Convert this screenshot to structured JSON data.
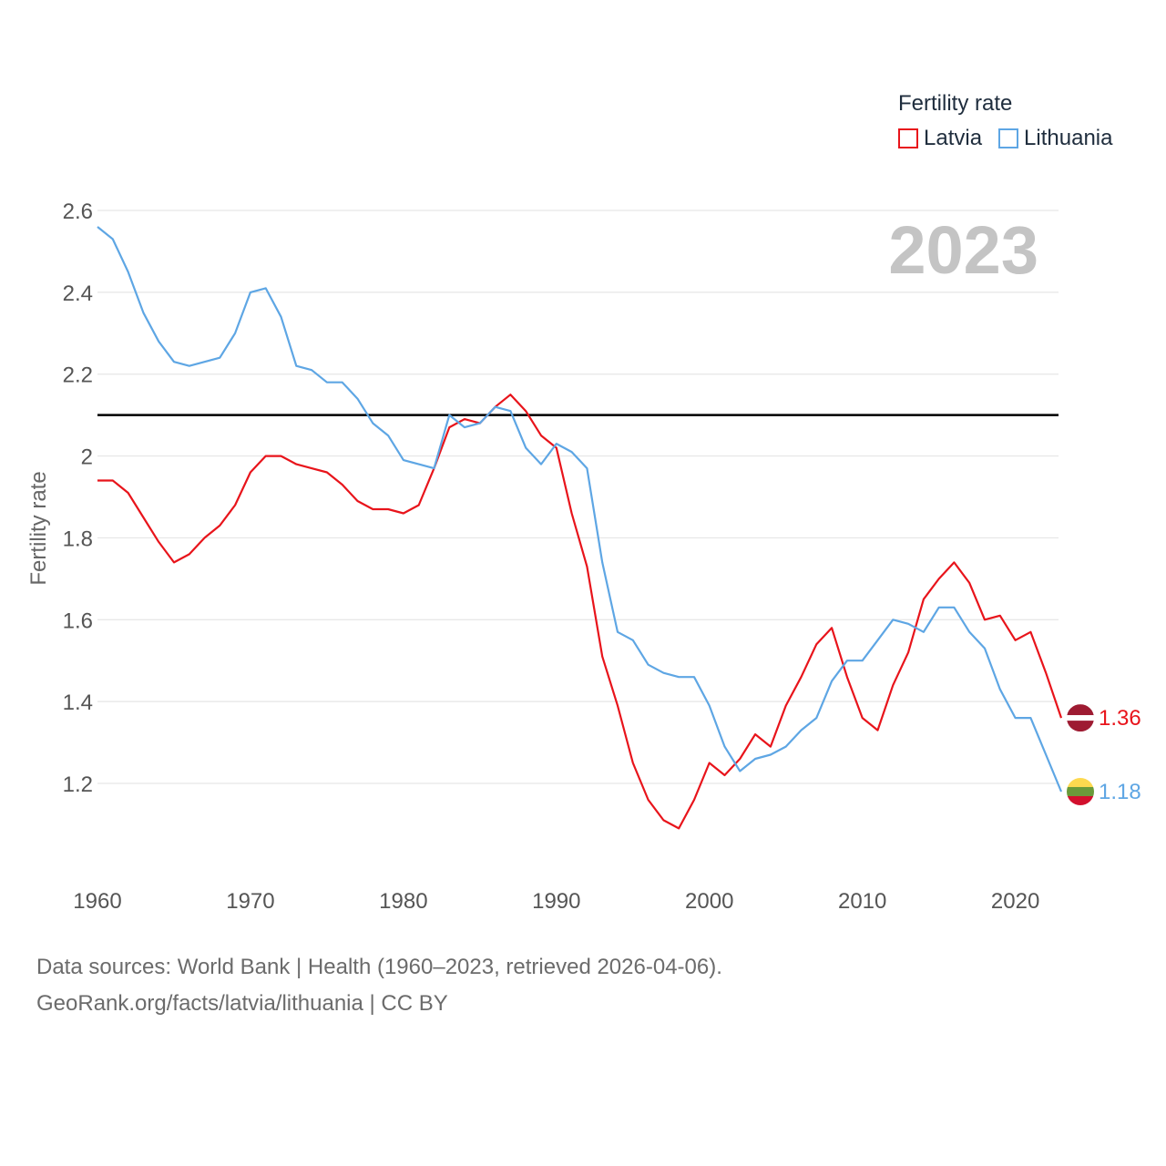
{
  "legend": {
    "title": "Fertility rate",
    "items": [
      {
        "label": "Latvia",
        "color": "#e8141b"
      },
      {
        "label": "Lithuania",
        "color": "#5ea6e4"
      }
    ]
  },
  "footer": {
    "line1": "Data sources: World Bank | Health (1960–2023, retrieved 2026-04-06).",
    "line2": "GeoRank.org/facts/latvia/lithuania | CC BY"
  },
  "chart_data": {
    "type": "line",
    "title": "Fertility rate",
    "year_label": "2023",
    "ylabel": "Fertility rate",
    "xlabel": "",
    "xlim": [
      1960,
      2023
    ],
    "ylim": [
      1.0,
      2.6
    ],
    "xticks": [
      1960,
      1970,
      1980,
      1990,
      2000,
      2010,
      2020
    ],
    "yticks": [
      1.2,
      1.4,
      1.6,
      1.8,
      2.0,
      2.2,
      2.4,
      2.6
    ],
    "ytick_labels": [
      "1.2",
      "1.4",
      "1.6",
      "1.8",
      "2",
      "2.2",
      "2.4",
      "2.6"
    ],
    "reference_line": 2.1,
    "grid": true,
    "x": [
      1960,
      1961,
      1962,
      1963,
      1964,
      1965,
      1966,
      1967,
      1968,
      1969,
      1970,
      1971,
      1972,
      1973,
      1974,
      1975,
      1976,
      1977,
      1978,
      1979,
      1980,
      1981,
      1982,
      1983,
      1984,
      1985,
      1986,
      1987,
      1988,
      1989,
      1990,
      1991,
      1992,
      1993,
      1994,
      1995,
      1996,
      1997,
      1998,
      1999,
      2000,
      2001,
      2002,
      2003,
      2004,
      2005,
      2006,
      2007,
      2008,
      2009,
      2010,
      2011,
      2012,
      2013,
      2014,
      2015,
      2016,
      2017,
      2018,
      2019,
      2020,
      2021,
      2022,
      2023
    ],
    "series": [
      {
        "name": "Latvia",
        "color": "#e8141b",
        "end_label": "1.36",
        "values": [
          1.94,
          1.94,
          1.91,
          1.85,
          1.79,
          1.74,
          1.76,
          1.8,
          1.83,
          1.88,
          1.96,
          2.0,
          2.0,
          1.98,
          1.97,
          1.96,
          1.93,
          1.89,
          1.87,
          1.87,
          1.86,
          1.88,
          1.97,
          2.07,
          2.09,
          2.08,
          2.12,
          2.15,
          2.11,
          2.05,
          2.02,
          1.86,
          1.73,
          1.51,
          1.39,
          1.25,
          1.16,
          1.11,
          1.09,
          1.16,
          1.25,
          1.22,
          1.26,
          1.32,
          1.29,
          1.39,
          1.46,
          1.54,
          1.58,
          1.46,
          1.36,
          1.33,
          1.44,
          1.52,
          1.65,
          1.7,
          1.74,
          1.69,
          1.6,
          1.61,
          1.55,
          1.57,
          1.47,
          1.36
        ]
      },
      {
        "name": "Lithuania",
        "color": "#5ea6e4",
        "end_label": "1.18",
        "values": [
          2.56,
          2.53,
          2.45,
          2.35,
          2.28,
          2.23,
          2.22,
          2.23,
          2.24,
          2.3,
          2.4,
          2.41,
          2.34,
          2.22,
          2.21,
          2.18,
          2.18,
          2.14,
          2.08,
          2.05,
          1.99,
          1.98,
          1.97,
          2.1,
          2.07,
          2.08,
          2.12,
          2.11,
          2.02,
          1.98,
          2.03,
          2.01,
          1.97,
          1.74,
          1.57,
          1.55,
          1.49,
          1.47,
          1.46,
          1.46,
          1.39,
          1.29,
          1.23,
          1.26,
          1.27,
          1.29,
          1.33,
          1.36,
          1.45,
          1.5,
          1.5,
          1.55,
          1.6,
          1.59,
          1.57,
          1.63,
          1.63,
          1.57,
          1.53,
          1.43,
          1.36,
          1.36,
          1.27,
          1.18
        ]
      }
    ]
  }
}
